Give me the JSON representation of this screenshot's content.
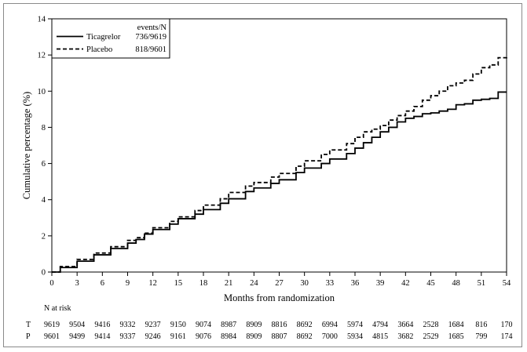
{
  "chart_data": {
    "type": "line",
    "xlabel": "Months from randomization",
    "ylabel": "Cumulative percentage (%)",
    "xlim": [
      0,
      54
    ],
    "ylim": [
      0,
      14
    ],
    "xticks": [
      0,
      3,
      6,
      9,
      12,
      15,
      18,
      21,
      24,
      27,
      30,
      33,
      36,
      39,
      42,
      45,
      48,
      51,
      54
    ],
    "yticks": [
      0,
      2,
      4,
      6,
      8,
      10,
      12,
      14
    ],
    "grid": false,
    "legend": {
      "placement": "top-left",
      "header": "events/N",
      "entries": [
        {
          "name": "Ticagrelor",
          "events": "736/9619",
          "style": "solid"
        },
        {
          "name": "Placebo",
          "events": "818/9601",
          "style": "dashed"
        }
      ]
    },
    "series": [
      {
        "name": "Ticagrelor",
        "style": "solid",
        "x": [
          0,
          1,
          3,
          5,
          7,
          9,
          10,
          11,
          12,
          14,
          15,
          17,
          18,
          20,
          21,
          23,
          24,
          26,
          27,
          29,
          30,
          32,
          33,
          35,
          36,
          37,
          38,
          39,
          40,
          41,
          42,
          43,
          44,
          45,
          46,
          47,
          48,
          49,
          50,
          51,
          52,
          53,
          54
        ],
        "y": [
          0,
          0.25,
          0.6,
          0.95,
          1.3,
          1.6,
          1.8,
          2.1,
          2.35,
          2.65,
          2.95,
          3.2,
          3.45,
          3.8,
          4.05,
          4.45,
          4.65,
          4.9,
          5.1,
          5.5,
          5.75,
          6.0,
          6.25,
          6.55,
          6.85,
          7.15,
          7.45,
          7.75,
          8.0,
          8.3,
          8.5,
          8.6,
          8.75,
          8.8,
          8.9,
          9.0,
          9.25,
          9.3,
          9.5,
          9.55,
          9.6,
          9.95,
          9.95
        ]
      },
      {
        "name": "Placebo",
        "style": "dashed",
        "x": [
          0,
          1,
          3,
          5,
          7,
          9,
          10,
          11,
          12,
          14,
          15,
          17,
          18,
          20,
          21,
          23,
          24,
          26,
          27,
          29,
          30,
          32,
          33,
          35,
          36,
          37,
          38,
          39,
          40,
          41,
          42,
          43,
          44,
          45,
          46,
          47,
          48,
          49,
          50,
          51,
          52,
          53,
          54
        ],
        "y": [
          0,
          0.3,
          0.7,
          1.05,
          1.4,
          1.75,
          1.9,
          2.15,
          2.45,
          2.8,
          3.05,
          3.4,
          3.7,
          4.05,
          4.4,
          4.75,
          4.95,
          5.25,
          5.45,
          5.85,
          6.15,
          6.5,
          6.75,
          7.1,
          7.45,
          7.75,
          7.9,
          8.1,
          8.4,
          8.65,
          8.9,
          9.15,
          9.5,
          9.75,
          10.0,
          10.3,
          10.45,
          10.6,
          10.95,
          11.3,
          11.45,
          11.85,
          11.9
        ]
      }
    ]
  },
  "risk_table": {
    "title": "N at risk",
    "rows": [
      {
        "label": "T",
        "values": [
          "9619",
          "9504",
          "9416",
          "9332",
          "9237",
          "9150",
          "9074",
          "8987",
          "8909",
          "8816",
          "8692",
          "6994",
          "5974",
          "4794",
          "3664",
          "2528",
          "1684",
          "816",
          "170"
        ]
      },
      {
        "label": "P",
        "values": [
          "9601",
          "9499",
          "9414",
          "9337",
          "9246",
          "9161",
          "9076",
          "8984",
          "8909",
          "8807",
          "8692",
          "7000",
          "5934",
          "4815",
          "3682",
          "2529",
          "1685",
          "799",
          "174"
        ]
      }
    ]
  }
}
